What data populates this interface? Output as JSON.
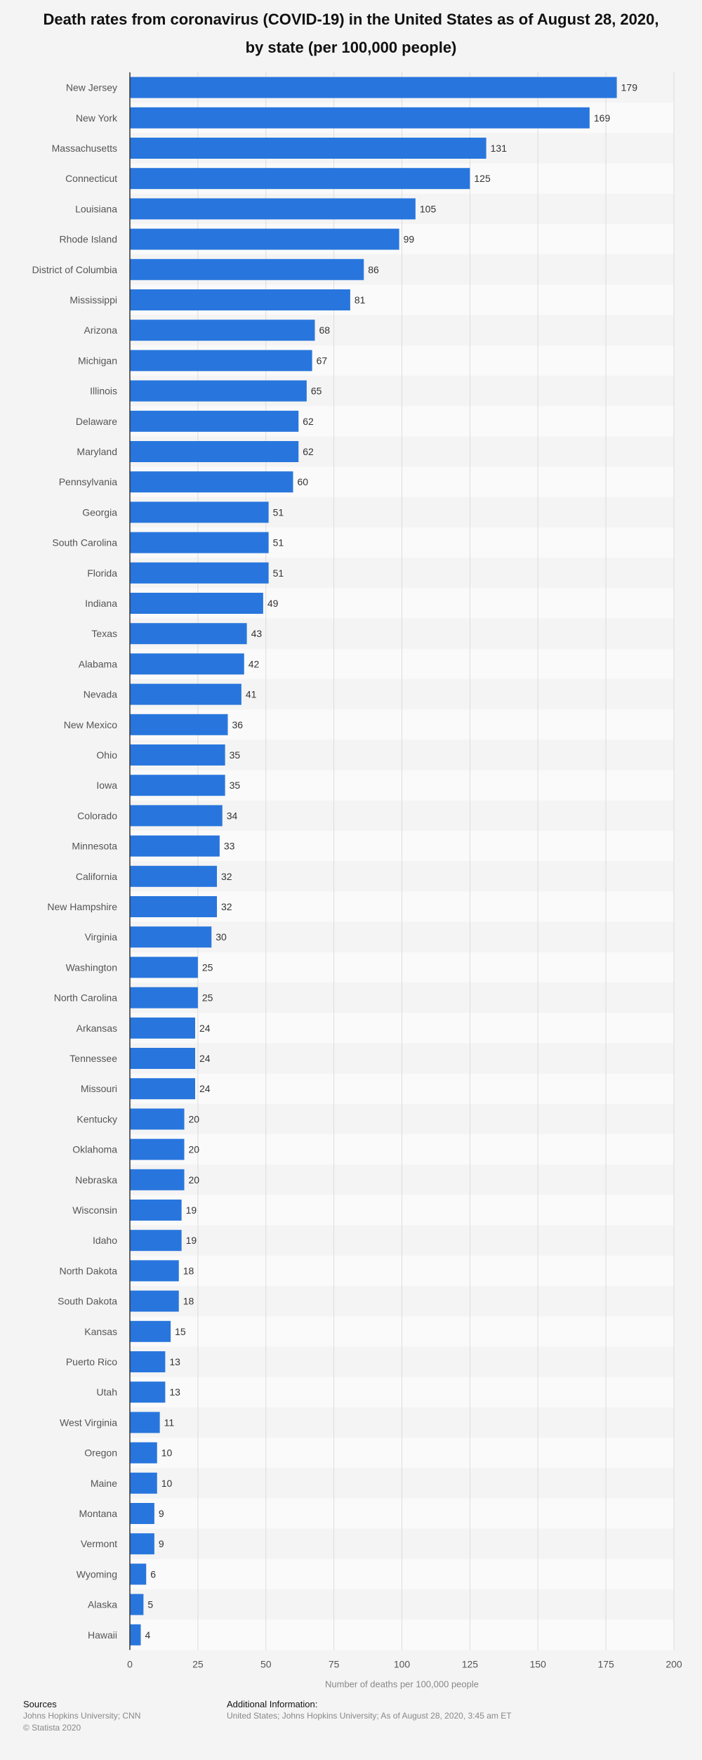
{
  "chart_data": {
    "type": "bar",
    "orientation": "horizontal",
    "title_line1": "Death rates from coronavirus (COVID-19) in the United States as of August 28, 2020,",
    "title_line2": "by state (per 100,000 people)",
    "xlabel": "Number of deaths per 100,000 people",
    "xlim": [
      0,
      200
    ],
    "xticks": [
      "0",
      "25",
      "50",
      "75",
      "100",
      "125",
      "150",
      "175",
      "200"
    ],
    "grid": true,
    "bar_color": "#2876dd",
    "categories": [
      "New Jersey",
      "New York",
      "Massachusetts",
      "Connecticut",
      "Louisiana",
      "Rhode Island",
      "District of Columbia",
      "Mississippi",
      "Arizona",
      "Michigan",
      "Illinois",
      "Delaware",
      "Maryland",
      "Pennsylvania",
      "Georgia",
      "South Carolina",
      "Florida",
      "Indiana",
      "Texas",
      "Alabama",
      "Nevada",
      "New Mexico",
      "Ohio",
      "Iowa",
      "Colorado",
      "Minnesota",
      "California",
      "New Hampshire",
      "Virginia",
      "Washington",
      "North Carolina",
      "Arkansas",
      "Tennessee",
      "Missouri",
      "Kentucky",
      "Oklahoma",
      "Nebraska",
      "Wisconsin",
      "Idaho",
      "North Dakota",
      "South Dakota",
      "Kansas",
      "Puerto Rico",
      "Utah",
      "West Virginia",
      "Oregon",
      "Maine",
      "Montana",
      "Vermont",
      "Wyoming",
      "Alaska",
      "Hawaii"
    ],
    "values": [
      179,
      169,
      131,
      125,
      105,
      99,
      86,
      81,
      68,
      67,
      65,
      62,
      62,
      60,
      51,
      51,
      51,
      49,
      43,
      42,
      41,
      36,
      35,
      35,
      34,
      33,
      32,
      32,
      30,
      25,
      25,
      24,
      24,
      24,
      20,
      20,
      20,
      19,
      19,
      18,
      18,
      15,
      13,
      13,
      11,
      10,
      10,
      9,
      9,
      6,
      5,
      4
    ]
  },
  "footer": {
    "sources_heading": "Sources",
    "sources_line1": "Johns Hopkins University; CNN",
    "sources_line2": "© Statista 2020",
    "info_heading": "Additional Information:",
    "info_line1": "United States; Johns Hopkins University; As of August 28, 2020, 3:45 am ET"
  }
}
